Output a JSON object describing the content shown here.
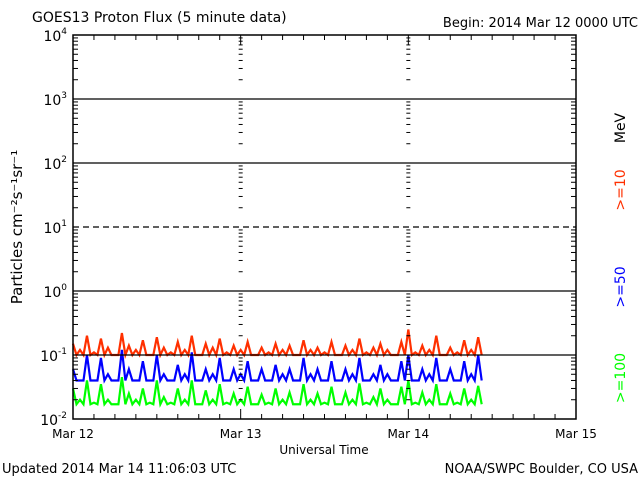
{
  "chart_data": {
    "type": "line",
    "title": "GOES13 Proton Flux (5 minute data)",
    "begin_label": "Begin: 2014 Mar 12 0000 UTC",
    "xlabel": "Universal Time",
    "ylabel": "Particles cm⁻²s⁻¹sr⁻¹",
    "yscale": "log",
    "ylim": [
      0.01,
      10000
    ],
    "y_ticks": [
      {
        "value": 10000,
        "base": "10",
        "exp": "4"
      },
      {
        "value": 1000,
        "base": "10",
        "exp": "3"
      },
      {
        "value": 100,
        "base": "10",
        "exp": "2"
      },
      {
        "value": 10,
        "base": "10",
        "exp": "1"
      },
      {
        "value": 1,
        "base": "10",
        "exp": "0"
      },
      {
        "value": 0.1,
        "base": "10",
        "exp": "-1"
      },
      {
        "value": 0.01,
        "base": "10",
        "exp": "-2"
      }
    ],
    "xlim_hours": [
      0,
      72
    ],
    "x_ticks": [
      {
        "hour": 0,
        "label": "Mar 12"
      },
      {
        "hour": 24,
        "label": "Mar 13"
      },
      {
        "hour": 48,
        "label": "Mar 14"
      },
      {
        "hour": 72,
        "label": "Mar 15"
      }
    ],
    "grid": "horizontal at decades, dashed at 10^1",
    "legend_placement": "right",
    "legend_unit": "MeV",
    "series": [
      {
        "name": ">=10",
        "color": "#ff3000",
        "values": [
          0.15,
          0.12,
          0.2,
          0.11,
          0.18,
          0.13,
          0.1,
          0.22,
          0.14,
          0.12,
          0.17,
          0.1,
          0.19,
          0.13,
          0.11,
          0.16,
          0.12,
          0.2,
          0.1,
          0.15,
          0.13,
          0.18,
          0.11,
          0.14,
          0.12,
          0.16,
          0.1,
          0.13,
          0.11,
          0.15,
          0.12,
          0.14,
          0.1,
          0.17,
          0.12,
          0.13,
          0.11,
          0.16,
          0.1,
          0.14,
          0.12,
          0.18,
          0.11,
          0.13,
          0.15,
          0.12,
          0.1,
          0.16,
          0.25,
          0.11,
          0.14,
          0.12,
          0.2,
          0.1,
          0.13,
          0.11,
          0.17,
          0.12,
          0.19
        ]
      },
      {
        "name": ">=50",
        "color": "#0000ff",
        "values": [
          0.06,
          0.04,
          0.1,
          0.04,
          0.09,
          0.05,
          0.04,
          0.12,
          0.06,
          0.04,
          0.08,
          0.04,
          0.1,
          0.05,
          0.04,
          0.07,
          0.05,
          0.11,
          0.04,
          0.06,
          0.05,
          0.09,
          0.04,
          0.06,
          0.05,
          0.08,
          0.04,
          0.06,
          0.04,
          0.07,
          0.05,
          0.06,
          0.04,
          0.09,
          0.05,
          0.06,
          0.04,
          0.08,
          0.04,
          0.06,
          0.05,
          0.09,
          0.04,
          0.05,
          0.07,
          0.05,
          0.04,
          0.08,
          0.1,
          0.04,
          0.06,
          0.05,
          0.09,
          0.04,
          0.06,
          0.04,
          0.08,
          0.05,
          0.1
        ]
      },
      {
        "name": ">=100",
        "color": "#00ff00",
        "values": [
          0.03,
          0.02,
          0.04,
          0.018,
          0.035,
          0.02,
          0.017,
          0.045,
          0.025,
          0.02,
          0.03,
          0.018,
          0.04,
          0.022,
          0.018,
          0.03,
          0.02,
          0.04,
          0.017,
          0.028,
          0.02,
          0.035,
          0.018,
          0.025,
          0.02,
          0.032,
          0.017,
          0.024,
          0.018,
          0.03,
          0.02,
          0.026,
          0.017,
          0.035,
          0.02,
          0.025,
          0.018,
          0.032,
          0.017,
          0.026,
          0.02,
          0.036,
          0.018,
          0.022,
          0.03,
          0.02,
          0.017,
          0.032,
          0.04,
          0.018,
          0.026,
          0.02,
          0.035,
          0.017,
          0.025,
          0.018,
          0.03,
          0.02,
          0.033
        ]
      }
    ]
  },
  "footer": {
    "updated": "Updated 2014 Mar 14 11:06:03 UTC",
    "credit": "NOAA/SWPC Boulder, CO USA"
  }
}
